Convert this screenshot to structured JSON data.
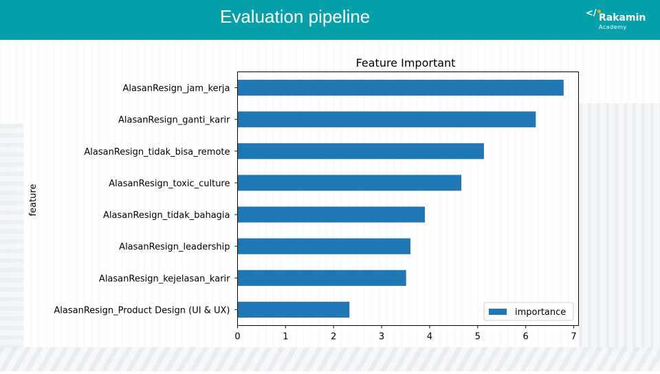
{
  "header": {
    "title": "Evaluation pipeline",
    "logo_name": "Rakamin",
    "logo_sub": "Academy",
    "logo_mark": "</",
    "bg_color": "#05a0aa"
  },
  "chart_data": {
    "type": "bar",
    "orientation": "horizontal",
    "title": "Feature Important",
    "xlabel": "",
    "ylabel": "feature",
    "xlim": [
      0,
      7.1
    ],
    "xticks": [
      0,
      1,
      2,
      3,
      4,
      5,
      6,
      7
    ],
    "grid": false,
    "legend": "bottom-right",
    "categories": [
      "AlasanResign_jam_kerja",
      "AlasanResign_ganti_karir",
      "AlasanResign_tidak_bisa_remote",
      "AlasanResign_toxic_culture",
      "AlasanResign_tidak_bahagia",
      "AlasanResign_leadership",
      "AlasanResign_kejelasan_karir",
      "AlasanResign_Product Design (UI & UX)"
    ],
    "series": [
      {
        "name": "importance",
        "color": "#1f77b4",
        "values": [
          6.79,
          6.21,
          5.13,
          4.66,
          3.9,
          3.6,
          3.51,
          2.33
        ]
      }
    ]
  }
}
